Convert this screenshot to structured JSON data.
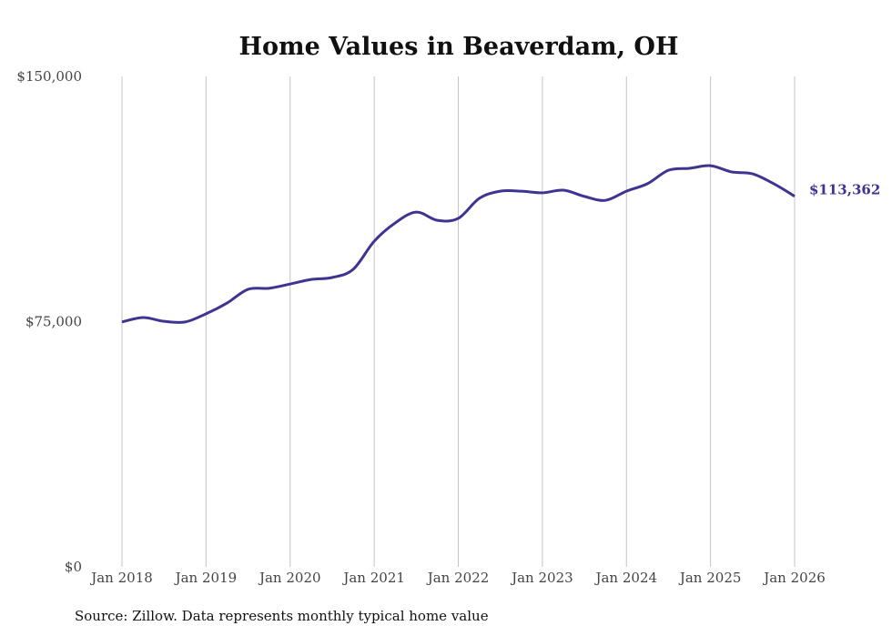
{
  "chart_data": {
    "type": "line",
    "title": "Home Values in Beaverdam, OH",
    "xlabel": "",
    "ylabel": "",
    "ylim": [
      0,
      150000
    ],
    "xlim": [
      2018,
      2026
    ],
    "y_ticks": [
      {
        "value": 0,
        "label": "$0"
      },
      {
        "value": 75000,
        "label": "$75,000"
      },
      {
        "value": 150000,
        "label": "$150,000"
      }
    ],
    "x_ticks": [
      {
        "value": 2018,
        "label": "Jan 2018"
      },
      {
        "value": 2019,
        "label": "Jan 2019"
      },
      {
        "value": 2020,
        "label": "Jan 2020"
      },
      {
        "value": 2021,
        "label": "Jan 2021"
      },
      {
        "value": 2022,
        "label": "Jan 2022"
      },
      {
        "value": 2023,
        "label": "Jan 2023"
      },
      {
        "value": 2024,
        "label": "Jan 2024"
      },
      {
        "value": 2025,
        "label": "Jan 2025"
      },
      {
        "value": 2026,
        "label": "Jan 2026"
      }
    ],
    "grid": "vertical",
    "series": [
      {
        "name": "Typical home value",
        "color": "#3d3591",
        "x": [
          2018,
          2018.25,
          2018.5,
          2018.75,
          2019,
          2019.25,
          2019.5,
          2019.75,
          2020,
          2020.25,
          2020.5,
          2020.75,
          2021,
          2021.25,
          2021.5,
          2021.75,
          2022,
          2022.25,
          2022.5,
          2022.75,
          2023,
          2023.25,
          2023.5,
          2023.75,
          2024,
          2024.25,
          2024.5,
          2024.75,
          2025,
          2025.25,
          2025.5,
          2025.75,
          2026
        ],
        "values": [
          74900,
          76250,
          75100,
          74900,
          77400,
          80700,
          84900,
          85200,
          86500,
          87900,
          88500,
          91000,
          99600,
          105200,
          108500,
          106000,
          106600,
          112700,
          114900,
          114900,
          114400,
          115200,
          113300,
          112100,
          114900,
          117200,
          121300,
          121900,
          122700,
          120800,
          120200,
          117200,
          113362
        ]
      }
    ],
    "end_label": "$113,362"
  },
  "source": "Source: Zillow. Data represents monthly typical home value"
}
